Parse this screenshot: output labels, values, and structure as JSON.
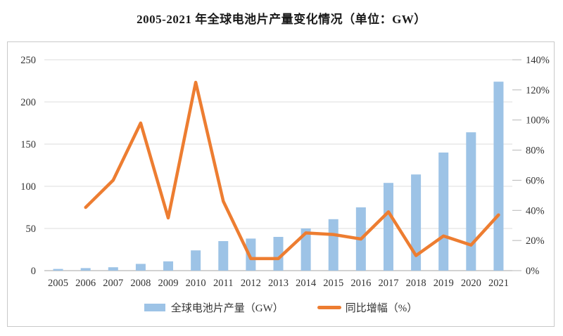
{
  "title": "2005-2021 年全球电池片产量变化情况（单位：GW）",
  "colors": {
    "bar": "#9DC3E6",
    "line": "#ED7D31",
    "grid": "#dedede",
    "axis": "#b7b7b7",
    "text": "#333333",
    "frame_border": "#c9c9c9"
  },
  "chart_data": {
    "type": "bar",
    "subtype": "combo-bar-line-dual-axis",
    "title": "2005-2021 年全球电池片产量变化情况（单位：GW）",
    "categories": [
      "2005",
      "2006",
      "2007",
      "2008",
      "2009",
      "2010",
      "2011",
      "2012",
      "2013",
      "2014",
      "2015",
      "2016",
      "2017",
      "2018",
      "2019",
      "2020",
      "2021"
    ],
    "series": [
      {
        "name": "全球电池片产量（GW）",
        "type": "bar",
        "axis": "left",
        "color": "#9DC3E6",
        "values": [
          2,
          3,
          4,
          8,
          11,
          24,
          35,
          38,
          40,
          50,
          61,
          75,
          104,
          114,
          140,
          164,
          224
        ]
      },
      {
        "name": "同比增幅（%）",
        "type": "line",
        "axis": "right",
        "color": "#ED7D31",
        "values": [
          null,
          42,
          60,
          98,
          35,
          125,
          46,
          8,
          8,
          25,
          24,
          21,
          39,
          10,
          23,
          17,
          37
        ]
      }
    ],
    "left_axis": {
      "min": 0,
      "max": 250,
      "step": 50,
      "ticks": [
        "0",
        "50",
        "100",
        "150",
        "200",
        "250"
      ]
    },
    "right_axis": {
      "min": 0,
      "max": 140,
      "step": 20,
      "ticks": [
        "0%",
        "20%",
        "40%",
        "60%",
        "80%",
        "100%",
        "120%",
        "140%"
      ]
    },
    "grid": true,
    "legend_position": "bottom"
  }
}
